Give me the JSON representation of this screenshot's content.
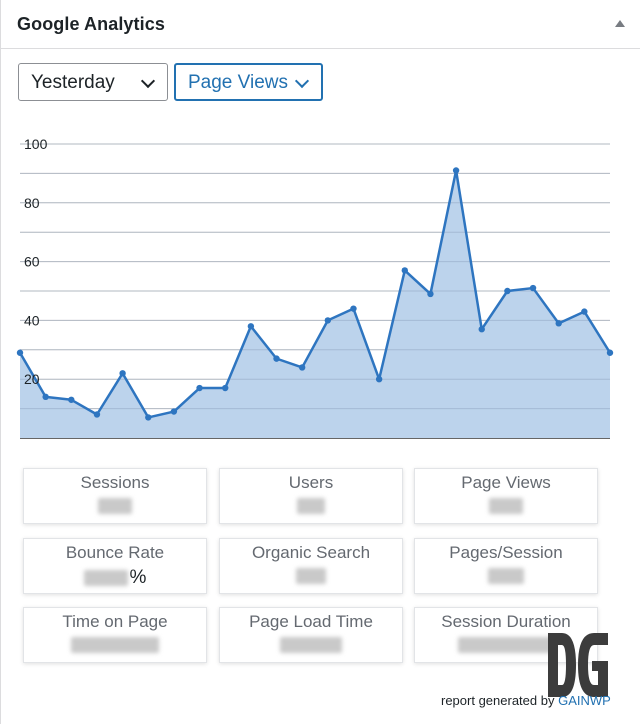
{
  "widget": {
    "title": "Google Analytics",
    "collapse_icon": "triangle-up-icon"
  },
  "filters": {
    "period": {
      "value": "Yesterday",
      "icon": "chevron-down-icon"
    },
    "metric": {
      "value": "Page Views",
      "icon": "chevron-down-icon"
    }
  },
  "colors": {
    "accent": "#2271b1",
    "line": "#2e75c0",
    "area": "#bcd3ec"
  },
  "chart_data": {
    "type": "area",
    "x": [
      1,
      2,
      3,
      4,
      5,
      6,
      7,
      8,
      9,
      10,
      11,
      12,
      13,
      14,
      15,
      16,
      17,
      18,
      19,
      20,
      21,
      22,
      23,
      24
    ],
    "series": [
      {
        "values": [
          29,
          14,
          13,
          8,
          22,
          7,
          9,
          17,
          17,
          38,
          27,
          24,
          40,
          44,
          20,
          57,
          49,
          91,
          37,
          50,
          51,
          39,
          43,
          29
        ]
      }
    ],
    "y_ticks": [
      "100",
      "80",
      "60",
      "40",
      "20"
    ],
    "ylim": [
      0,
      100
    ],
    "grid": true
  },
  "stats": [
    {
      "label": "Sessions",
      "value_hidden": true
    },
    {
      "label": "Users",
      "value_hidden": true
    },
    {
      "label": "Page Views",
      "value_hidden": true
    },
    {
      "label": "Bounce Rate",
      "suffix": "%",
      "value_hidden": true
    },
    {
      "label": "Organic Search",
      "value_hidden": true
    },
    {
      "label": "Pages/Session",
      "value_hidden": true
    },
    {
      "label": "Time on Page",
      "value_hidden": true
    },
    {
      "label": "Page Load Time",
      "value_hidden": true
    },
    {
      "label": "Session Duration",
      "value_hidden": true
    }
  ],
  "footer": {
    "prefix": "report generated by",
    "brand": "GAINWP"
  },
  "logo_icon": "gainwp-logo-icon"
}
